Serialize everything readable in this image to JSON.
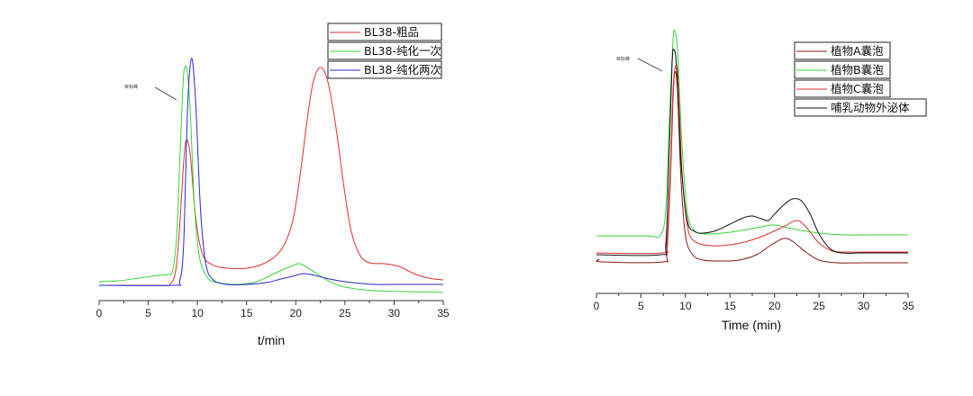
{
  "chart_data": [
    {
      "type": "line",
      "title": "",
      "xlabel": "t/min",
      "ylabel": "",
      "xlim": [
        0,
        35
      ],
      "xticks": [
        0,
        5,
        10,
        15,
        20,
        25,
        30,
        35
      ],
      "grid": false,
      "legend_position": "upper right",
      "annotation": {
        "text": "目标峰",
        "x": 7.8,
        "target_x": 8.7
      },
      "series": [
        {
          "name": "BL38-粗品",
          "color": "#e03030",
          "points": [
            [
              0,
              317
            ],
            [
              6,
              317
            ],
            [
              7.2,
              316
            ],
            [
              7.8,
              300
            ],
            [
              8.2,
              250
            ],
            [
              8.6,
              180
            ],
            [
              8.9,
              155
            ],
            [
              9.3,
              175
            ],
            [
              9.8,
              240
            ],
            [
              10.5,
              282
            ],
            [
              11.5,
              294
            ],
            [
              13,
              298
            ],
            [
              15,
              298
            ],
            [
              16.5,
              294
            ],
            [
              18,
              284
            ],
            [
              19,
              268
            ],
            [
              19.8,
              240
            ],
            [
              20.5,
              190
            ],
            [
              21.2,
              130
            ],
            [
              21.8,
              90
            ],
            [
              22.5,
              75
            ],
            [
              23.2,
              88
            ],
            [
              24,
              135
            ],
            [
              24.8,
              200
            ],
            [
              25.6,
              255
            ],
            [
              26.5,
              283
            ],
            [
              27.5,
              292
            ],
            [
              29,
              293
            ],
            [
              30.5,
              296
            ],
            [
              32,
              304
            ],
            [
              33.5,
              309
            ],
            [
              35,
              311
            ]
          ]
        },
        {
          "name": "BL38-纯化一次",
          "color": "#3ad43a",
          "points": [
            [
              0,
              313
            ],
            [
              2,
              312
            ],
            [
              4,
              309
            ],
            [
              6,
              306
            ],
            [
              7,
              305
            ],
            [
              7.5,
              300
            ],
            [
              7.9,
              260
            ],
            [
              8.2,
              180
            ],
            [
              8.5,
              100
            ],
            [
              8.7,
              75
            ],
            [
              9.0,
              82
            ],
            [
              9.3,
              130
            ],
            [
              9.7,
              230
            ],
            [
              10.2,
              285
            ],
            [
              11,
              308
            ],
            [
              12,
              314
            ],
            [
              14,
              316
            ],
            [
              16,
              313
            ],
            [
              18,
              303
            ],
            [
              19.5,
              296
            ],
            [
              20.3,
              293
            ],
            [
              21,
              296
            ],
            [
              22,
              303
            ],
            [
              23.5,
              313
            ],
            [
              25,
              319
            ],
            [
              28,
              323
            ],
            [
              31,
              324
            ],
            [
              35,
              325
            ]
          ]
        },
        {
          "name": "BL38-纯化两次",
          "color": "#2828d8",
          "points": [
            [
              0,
              317
            ],
            [
              7.5,
              317
            ],
            [
              8.2,
              312
            ],
            [
              8.6,
              270
            ],
            [
              9.0,
              120
            ],
            [
              9.4,
              65
            ],
            [
              9.8,
              110
            ],
            [
              10.3,
              230
            ],
            [
              10.8,
              290
            ],
            [
              11.5,
              310
            ],
            [
              13,
              316
            ],
            [
              15,
              316
            ],
            [
              17,
              314
            ],
            [
              18.5,
              310
            ],
            [
              20,
              306
            ],
            [
              20.8,
              304
            ],
            [
              22,
              306
            ],
            [
              23,
              309
            ],
            [
              25,
              313
            ],
            [
              28,
              316
            ],
            [
              30,
              316
            ],
            [
              33,
              316
            ],
            [
              35,
              316
            ]
          ]
        }
      ]
    },
    {
      "type": "line",
      "title": "",
      "xlabel": "Time (min)",
      "ylabel": "",
      "xlim": [
        0,
        35
      ],
      "xticks": [
        0,
        5,
        10,
        15,
        20,
        25,
        30,
        35
      ],
      "grid": false,
      "legend_position": "upper right",
      "annotation": {
        "text": "目标峰",
        "x": 7.2,
        "target_x": 8.4
      },
      "series": [
        {
          "name": "植物A囊泡",
          "color": "#8b1a1a",
          "points": [
            [
              0,
              291
            ],
            [
              0.3,
              288
            ],
            [
              0.6,
              291
            ],
            [
              7.4,
              291
            ],
            [
              7.9,
              280
            ],
            [
              8.3,
              200
            ],
            [
              8.6,
              110
            ],
            [
              8.8,
              80
            ],
            [
              9.1,
              100
            ],
            [
              9.5,
              200
            ],
            [
              10,
              262
            ],
            [
              10.8,
              283
            ],
            [
              12,
              289
            ],
            [
              14,
              290
            ],
            [
              16,
              289
            ],
            [
              18,
              283
            ],
            [
              19.5,
              273
            ],
            [
              21,
              265
            ],
            [
              22,
              268
            ],
            [
              23.5,
              280
            ],
            [
              25,
              289
            ],
            [
              27,
              292
            ],
            [
              30,
              292
            ],
            [
              35,
              292
            ]
          ]
        },
        {
          "name": "植物B囊泡",
          "color": "#3ad43a",
          "points": [
            [
              0,
              262
            ],
            [
              5.5,
              262
            ],
            [
              7.2,
              261
            ],
            [
              7.8,
              230
            ],
            [
              8.2,
              130
            ],
            [
              8.6,
              45
            ],
            [
              8.8,
              35
            ],
            [
              9.1,
              55
            ],
            [
              9.6,
              160
            ],
            [
              10.2,
              235
            ],
            [
              11,
              256
            ],
            [
              12.5,
              260
            ],
            [
              15,
              258
            ],
            [
              17.5,
              254
            ],
            [
              19,
              251
            ],
            [
              20,
              250
            ],
            [
              21.5,
              253
            ],
            [
              23,
              256
            ],
            [
              25,
              259
            ],
            [
              28,
              261
            ],
            [
              32,
              261
            ],
            [
              35,
              261
            ]
          ]
        },
        {
          "name": "植物C囊泡",
          "color": "#e03030",
          "points": [
            [
              0,
              281
            ],
            [
              7.3,
              281
            ],
            [
              7.9,
              270
            ],
            [
              8.3,
              190
            ],
            [
              8.6,
              100
            ],
            [
              8.9,
              73
            ],
            [
              9.2,
              92
            ],
            [
              9.6,
              190
            ],
            [
              10.2,
              250
            ],
            [
              11,
              268
            ],
            [
              13,
              273
            ],
            [
              15,
              272
            ],
            [
              17,
              268
            ],
            [
              19,
              261
            ],
            [
              21,
              252
            ],
            [
              22.5,
              245
            ],
            [
              23.5,
              252
            ],
            [
              25,
              270
            ],
            [
              26.5,
              279
            ],
            [
              28,
              280
            ],
            [
              32,
              280
            ],
            [
              35,
              280
            ]
          ]
        },
        {
          "name": "哺乳动物外泌体",
          "color": "#111111",
          "points": [
            [
              0,
              283
            ],
            [
              7.2,
              283
            ],
            [
              7.8,
              270
            ],
            [
              8.2,
              160
            ],
            [
              8.5,
              70
            ],
            [
              8.7,
              55
            ],
            [
              9.0,
              75
            ],
            [
              9.5,
              180
            ],
            [
              10.2,
              245
            ],
            [
              11,
              257
            ],
            [
              12,
              259
            ],
            [
              13.5,
              256
            ],
            [
              15,
              249
            ],
            [
              16.5,
              242
            ],
            [
              17.5,
              240
            ],
            [
              18.5,
              243
            ],
            [
              19.3,
              245
            ],
            [
              20,
              238
            ],
            [
              21,
              228
            ],
            [
              22,
              221
            ],
            [
              23,
              223
            ],
            [
              24,
              238
            ],
            [
              25,
              260
            ],
            [
              26.2,
              276
            ],
            [
              27.5,
              281
            ],
            [
              30,
              281
            ],
            [
              35,
              281
            ]
          ]
        }
      ]
    }
  ]
}
